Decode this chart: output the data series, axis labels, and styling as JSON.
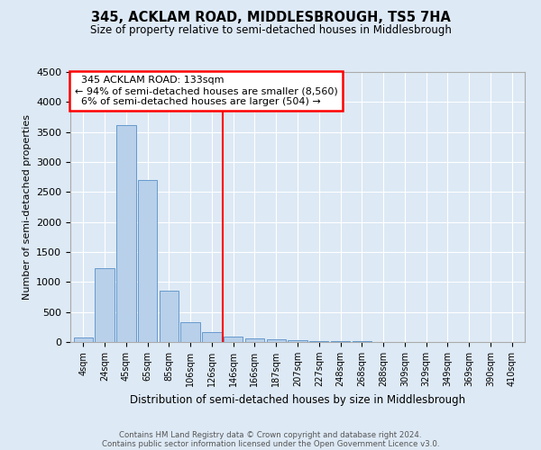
{
  "title": "345, ACKLAM ROAD, MIDDLESBROUGH, TS5 7HA",
  "subtitle": "Size of property relative to semi-detached houses in Middlesbrough",
  "xlabel": "Distribution of semi-detached houses by size in Middlesbrough",
  "ylabel": "Number of semi-detached properties",
  "bar_labels": [
    "4sqm",
    "24sqm",
    "45sqm",
    "65sqm",
    "85sqm",
    "106sqm",
    "126sqm",
    "146sqm",
    "166sqm",
    "187sqm",
    "207sqm",
    "227sqm",
    "248sqm",
    "268sqm",
    "288sqm",
    "309sqm",
    "329sqm",
    "349sqm",
    "369sqm",
    "390sqm",
    "410sqm"
  ],
  "bar_heights": [
    80,
    1230,
    3620,
    2700,
    860,
    330,
    170,
    90,
    55,
    40,
    30,
    20,
    15,
    10,
    7,
    5,
    3,
    2,
    1,
    0,
    0
  ],
  "bar_color": "#b8d0ea",
  "bar_edge_color": "#6699cc",
  "vline_x_index": 6.5,
  "ylim": [
    0,
    4500
  ],
  "yticks": [
    0,
    500,
    1000,
    1500,
    2000,
    2500,
    3000,
    3500,
    4000,
    4500
  ],
  "background_color": "#dde9f5",
  "plot_bg_color": "#dde9f5",
  "grid_color": "#ffffff",
  "property_label": "345 ACKLAM ROAD: 133sqm",
  "pct_smaller": 94,
  "num_smaller": "8,560",
  "pct_larger": 6,
  "num_larger": "504",
  "footer_line1": "Contains HM Land Registry data © Crown copyright and database right 2024.",
  "footer_line2": "Contains public sector information licensed under the Open Government Licence v3.0."
}
